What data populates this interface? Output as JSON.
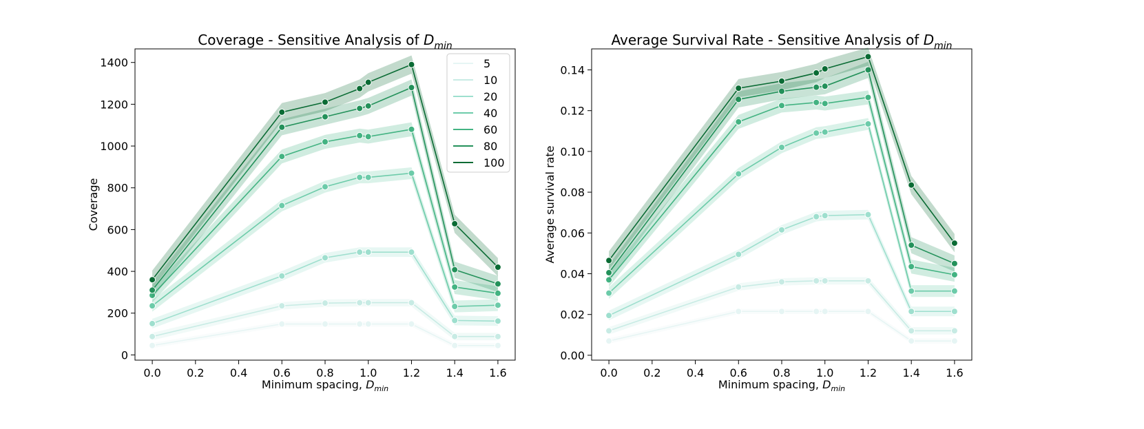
{
  "chart_data": [
    {
      "type": "line",
      "title": "Coverage - Sensitive Analysis of ",
      "title_var": "D",
      "title_sub": "min",
      "xlabel": "Minimum spacing, ",
      "xlabel_var": "D",
      "xlabel_sub": "min",
      "ylabel": "Coverage",
      "xlim": [
        -0.08,
        1.68
      ],
      "ylim": [
        -25,
        1465
      ],
      "xticks": [
        "0.0",
        "0.2",
        "0.4",
        "0.6",
        "0.8",
        "1.0",
        "1.2",
        "1.4",
        "1.6"
      ],
      "yticks": [
        "0",
        "200",
        "400",
        "600",
        "800",
        "1000",
        "1200",
        "1400"
      ],
      "x": [
        0.0,
        0.6,
        0.8,
        0.96,
        1.0,
        1.2,
        1.4,
        1.6
      ],
      "legend_position": "top-right",
      "series": [
        {
          "name": "5",
          "color": "#e6f5f4",
          "values": [
            45,
            148,
            148,
            148,
            148,
            148,
            45,
            45
          ]
        },
        {
          "name": "10",
          "color": "#c7ebe4",
          "values": [
            88,
            235,
            248,
            250,
            250,
            250,
            88,
            88
          ]
        },
        {
          "name": "20",
          "color": "#9edfce",
          "values": [
            150,
            378,
            465,
            492,
            492,
            492,
            165,
            162
          ]
        },
        {
          "name": "40",
          "color": "#6ccba9",
          "values": [
            235,
            715,
            805,
            850,
            850,
            870,
            232,
            238
          ]
        },
        {
          "name": "60",
          "color": "#43b382",
          "values": [
            285,
            950,
            1020,
            1050,
            1045,
            1080,
            325,
            295
          ]
        },
        {
          "name": "80",
          "color": "#23915a",
          "values": [
            310,
            1090,
            1140,
            1180,
            1192,
            1280,
            408,
            340
          ]
        },
        {
          "name": "100",
          "color": "#0a6b34",
          "values": [
            360,
            1162,
            1210,
            1275,
            1305,
            1390,
            628,
            420
          ]
        }
      ]
    },
    {
      "type": "line",
      "title": "Average Survival Rate - Sensitive Analysis of ",
      "title_var": "D",
      "title_sub": "min",
      "xlabel": "Minimum spacing, ",
      "xlabel_var": "D",
      "xlabel_sub": "min",
      "ylabel": "Average survival rate",
      "xlim": [
        -0.08,
        1.68
      ],
      "ylim": [
        -0.0024,
        0.1503
      ],
      "xticks": [
        "0.0",
        "0.2",
        "0.4",
        "0.6",
        "0.8",
        "1.0",
        "1.2",
        "1.4",
        "1.6"
      ],
      "yticks": [
        "0.00",
        "0.02",
        "0.04",
        "0.06",
        "0.08",
        "0.10",
        "0.12",
        "0.14"
      ],
      "x": [
        0.0,
        0.6,
        0.8,
        0.96,
        1.0,
        1.2,
        1.4,
        1.6
      ],
      "series": [
        {
          "name": "5",
          "color": "#e6f5f4",
          "values": [
            0.007,
            0.0215,
            0.0215,
            0.0215,
            0.0215,
            0.0215,
            0.007,
            0.007
          ]
        },
        {
          "name": "10",
          "color": "#c7ebe4",
          "values": [
            0.012,
            0.0335,
            0.036,
            0.0365,
            0.0365,
            0.0365,
            0.012,
            0.012
          ]
        },
        {
          "name": "20",
          "color": "#9edfce",
          "values": [
            0.0195,
            0.0495,
            0.0615,
            0.068,
            0.0685,
            0.069,
            0.0215,
            0.0215
          ]
        },
        {
          "name": "40",
          "color": "#6ccba9",
          "values": [
            0.0305,
            0.089,
            0.102,
            0.109,
            0.1095,
            0.1135,
            0.0315,
            0.0315
          ]
        },
        {
          "name": "60",
          "color": "#43b382",
          "values": [
            0.037,
            0.1145,
            0.1225,
            0.124,
            0.1235,
            0.1265,
            0.0435,
            0.0395
          ]
        },
        {
          "name": "80",
          "color": "#23915a",
          "values": [
            0.0405,
            0.1255,
            0.1295,
            0.1315,
            0.132,
            0.14,
            0.054,
            0.045
          ]
        },
        {
          "name": "100",
          "color": "#0a6b34",
          "values": [
            0.0465,
            0.131,
            0.1345,
            0.1385,
            0.1405,
            0.1465,
            0.0835,
            0.055
          ]
        }
      ]
    }
  ]
}
